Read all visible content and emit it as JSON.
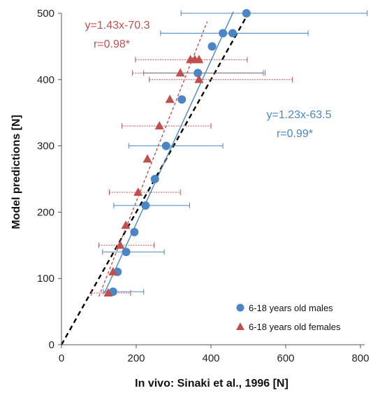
{
  "chart_data": {
    "type": "scatter",
    "xlabel": "In vivo: Sinaki et al., 1996 [N]",
    "ylabel": "Model predictions [N]",
    "xlim": [
      0,
      800
    ],
    "ylim": [
      0,
      500
    ],
    "xticks": [
      "0",
      "200",
      "400",
      "600",
      "800"
    ],
    "yticks": [
      "0",
      "100",
      "200",
      "300",
      "400",
      "500"
    ],
    "grid": false,
    "legend_position": "bottom-right",
    "identity_line": {
      "style": "dashed",
      "color": "#000000",
      "from": [
        0,
        0
      ],
      "to": [
        500,
        500
      ]
    },
    "series": [
      {
        "name": "6-18 years old males",
        "marker": "circle",
        "color": "#4a86c5",
        "points": [
          {
            "x": 138,
            "y": 80,
            "xerr_low": 112,
            "xerr_high": 220
          },
          {
            "x": 150,
            "y": 110,
            "xerr_low": null,
            "xerr_high": null
          },
          {
            "x": 173,
            "y": 140,
            "xerr_low": 110,
            "xerr_high": 275
          },
          {
            "x": 195,
            "y": 170,
            "xerr_low": null,
            "xerr_high": null
          },
          {
            "x": 225,
            "y": 210,
            "xerr_low": 140,
            "xerr_high": 343
          },
          {
            "x": 250,
            "y": 250,
            "xerr_low": null,
            "xerr_high": null
          },
          {
            "x": 280,
            "y": 300,
            "xerr_low": 180,
            "xerr_high": 432
          },
          {
            "x": 322,
            "y": 370,
            "xerr_low": null,
            "xerr_high": null
          },
          {
            "x": 365,
            "y": 410,
            "xerr_low": 220,
            "xerr_high": 540
          },
          {
            "x": 403,
            "y": 450,
            "xerr_low": null,
            "xerr_high": null
          },
          {
            "x": 432,
            "y": 470,
            "xerr_low": 265,
            "xerr_high": 660
          },
          {
            "x": 458,
            "y": 470,
            "xerr_low": null,
            "xerr_high": null
          },
          {
            "x": 495,
            "y": 500,
            "xerr_low": 320,
            "xerr_high": 818
          }
        ],
        "fit": {
          "equation": "y=1.23x-63.5",
          "r": "r=0.99*",
          "line_style": "solid",
          "x_from": 115,
          "x_to": 460
        }
      },
      {
        "name": "6-18 years old females",
        "marker": "triangle",
        "color": "#c0504d",
        "points": [
          {
            "x": 125,
            "y": 78,
            "xerr_low": 80,
            "xerr_high": 185
          },
          {
            "x": 138,
            "y": 110,
            "xerr_low": null,
            "xerr_high": null
          },
          {
            "x": 157,
            "y": 150,
            "xerr_low": 100,
            "xerr_high": 248
          },
          {
            "x": 172,
            "y": 180,
            "xerr_low": null,
            "xerr_high": null
          },
          {
            "x": 205,
            "y": 230,
            "xerr_low": 128,
            "xerr_high": 318
          },
          {
            "x": 230,
            "y": 280,
            "xerr_low": null,
            "xerr_high": null
          },
          {
            "x": 262,
            "y": 330,
            "xerr_low": 162,
            "xerr_high": 400
          },
          {
            "x": 290,
            "y": 370,
            "xerr_low": null,
            "xerr_high": null
          },
          {
            "x": 318,
            "y": 410,
            "xerr_low": 190,
            "xerr_high": 545
          },
          {
            "x": 345,
            "y": 430,
            "xerr_low": null,
            "xerr_high": null
          },
          {
            "x": 357,
            "y": 430,
            "xerr_low": 198,
            "xerr_high": 497
          },
          {
            "x": 368,
            "y": 400,
            "xerr_low": 235,
            "xerr_high": 618
          },
          {
            "x": 368,
            "y": 430,
            "xerr_low": null,
            "xerr_high": null
          }
        ],
        "fit": {
          "equation": "y=1.43x-70.3",
          "r": "r=0.98*",
          "line_style": "dashed",
          "x_from": 100,
          "x_to": 390
        }
      }
    ]
  }
}
